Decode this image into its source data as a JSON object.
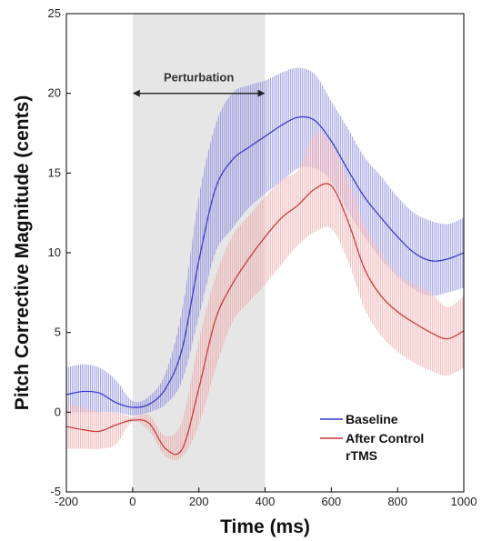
{
  "chart_data": {
    "type": "line",
    "title": "",
    "xlabel": "Time (ms)",
    "ylabel": "Pitch Corrective Magnitude (cents)",
    "xlim": [
      -200,
      1000
    ],
    "ylim": [
      -5,
      25
    ],
    "xticks": [
      "-200",
      "0",
      "200",
      "400",
      "600",
      "800",
      "1000"
    ],
    "yticks": [
      "-5",
      "0",
      "5",
      "10",
      "15",
      "20",
      "25"
    ],
    "grid": false,
    "shaded_region": {
      "x": [
        0,
        400
      ],
      "label": "Perturbation",
      "color": "#e6e6e6"
    },
    "legend": {
      "position": "bottom-right"
    },
    "x": [
      -200,
      -150,
      -100,
      -50,
      0,
      50,
      100,
      150,
      200,
      250,
      300,
      350,
      400,
      450,
      500,
      550,
      600,
      650,
      700,
      750,
      800,
      850,
      900,
      950,
      1000
    ],
    "series": [
      {
        "name": "Baseline",
        "color": "#3333cc",
        "band_color": "#8080e0",
        "values": [
          1.1,
          1.3,
          1.2,
          0.6,
          0.3,
          0.5,
          1.5,
          4.0,
          9.5,
          14.0,
          15.8,
          16.6,
          17.3,
          18.0,
          18.5,
          18.3,
          17.0,
          15.2,
          13.5,
          12.2,
          11.0,
          10.0,
          9.5,
          9.6,
          10.0
        ],
        "upper": [
          2.8,
          3.0,
          2.8,
          2.0,
          0.7,
          1.0,
          2.5,
          6.5,
          13.5,
          18.0,
          20.0,
          20.5,
          20.8,
          21.3,
          21.6,
          21.2,
          19.5,
          17.8,
          16.0,
          14.8,
          13.5,
          12.5,
          12.0,
          11.8,
          12.2
        ],
        "lower": [
          0.0,
          0.0,
          0.0,
          0.0,
          -0.2,
          0.0,
          0.5,
          2.0,
          6.0,
          10.0,
          11.5,
          12.8,
          13.7,
          14.5,
          15.3,
          15.3,
          14.5,
          12.6,
          11.0,
          9.6,
          8.5,
          7.7,
          7.3,
          7.5,
          7.8
        ]
      },
      {
        "name": "After Control rTMS",
        "color": "#cc3333",
        "band_color": "#f0a0a0",
        "values": [
          -0.9,
          -1.1,
          -1.2,
          -0.8,
          -0.5,
          -0.7,
          -2.3,
          -2.3,
          1.5,
          5.8,
          8.0,
          9.6,
          11.0,
          12.2,
          13.0,
          14.0,
          14.2,
          12.0,
          9.0,
          7.3,
          6.3,
          5.6,
          5.0,
          4.6,
          5.1
        ],
        "upper": [
          0.5,
          0.3,
          0.0,
          0.0,
          -0.3,
          -0.2,
          -1.5,
          -0.5,
          4.5,
          8.5,
          11.0,
          12.3,
          13.5,
          14.6,
          15.2,
          17.5,
          16.8,
          14.5,
          11.8,
          10.0,
          8.7,
          8.0,
          7.5,
          6.6,
          7.3
        ],
        "lower": [
          -2.3,
          -2.3,
          -2.3,
          -2.0,
          -0.6,
          -1.2,
          -2.8,
          -2.8,
          -0.8,
          2.7,
          5.6,
          6.9,
          8.0,
          9.3,
          10.5,
          11.3,
          11.5,
          9.5,
          6.5,
          4.8,
          3.8,
          3.1,
          2.6,
          2.3,
          2.8
        ]
      }
    ]
  }
}
